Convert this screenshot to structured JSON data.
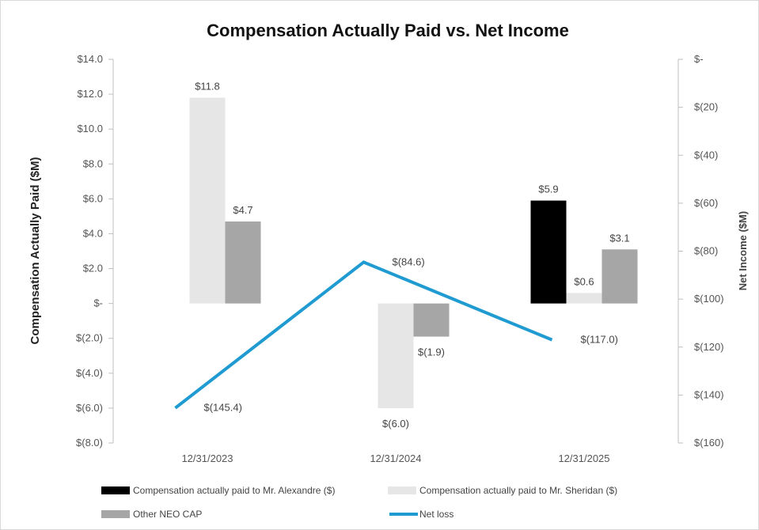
{
  "chart_data": {
    "type": "bar",
    "title": "Compensation Actually Paid vs. Net Income",
    "categories": [
      "12/31/2023",
      "12/31/2024",
      "12/31/2025"
    ],
    "ylabel": "Compensation Actually Paid ($M)",
    "y2label": "Net Income ($M)",
    "ylim": [
      -8,
      14
    ],
    "y2lim": [
      -160,
      0
    ],
    "yticks": [
      "$14.0",
      "$12.0",
      "$10.0",
      "$8.0",
      "$6.0",
      "$4.0",
      "$2.0",
      "$-",
      "$(2.0)",
      "$(4.0)",
      "$(6.0)",
      "$(8.0)"
    ],
    "y2ticks": [
      "$-",
      "$(20)",
      "$(40)",
      "$(60)",
      "$(80)",
      "$(100)",
      "$(120)",
      "$(140)",
      "$(160)"
    ],
    "series": [
      {
        "name": "Compensation actually paid to Mr. Alexandre ($)",
        "kind": "bar",
        "axis": "left",
        "color": "#000000",
        "values": [
          null,
          null,
          5.9
        ],
        "labels": [
          "",
          "",
          "$5.9"
        ]
      },
      {
        "name": "Compensation actually paid to Mr. Sheridan ($)",
        "kind": "bar",
        "axis": "left",
        "color": "#e6e6e6",
        "values": [
          11.8,
          -6.0,
          0.6
        ],
        "labels": [
          "$11.8",
          "$(6.0)",
          "$0.6"
        ]
      },
      {
        "name": "Other NEO CAP",
        "kind": "bar",
        "axis": "left",
        "color": "#a6a6a6",
        "values": [
          4.7,
          -1.9,
          3.1
        ],
        "labels": [
          "$4.7",
          "$(1.9)",
          "$3.1"
        ]
      },
      {
        "name": "Net loss",
        "kind": "line",
        "axis": "right",
        "color": "#1f9bd1",
        "values": [
          -145.4,
          -84.6,
          -117.0
        ],
        "labels": [
          "$(145.4)",
          "$(84.6)",
          "$(117.0)"
        ]
      }
    ],
    "legend_position": "bottom",
    "grid": false
  }
}
